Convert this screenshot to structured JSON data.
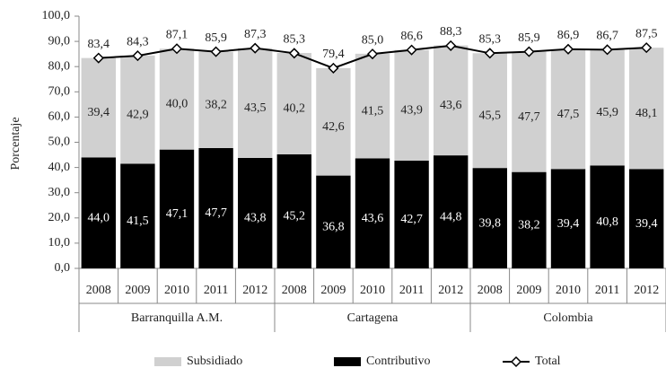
{
  "chart_data": {
    "type": "bar",
    "stacked": true,
    "grid": false,
    "y_label": "Porcentaje",
    "groups": [
      {
        "name": "Barranquilla A.M.",
        "categories": [
          "2008",
          "2009",
          "2010",
          "2011",
          "2012"
        ]
      },
      {
        "name": "Cartagena",
        "categories": [
          "2008",
          "2009",
          "2010",
          "2011",
          "2012"
        ]
      },
      {
        "name": "Colombia",
        "categories": [
          "2008",
          "2009",
          "2010",
          "2011",
          "2012"
        ]
      }
    ],
    "ylim": [
      0,
      100
    ],
    "yticks": [
      {
        "value": 0,
        "label": "0,0"
      },
      {
        "value": 10,
        "label": "10,0"
      },
      {
        "value": 20,
        "label": "20,0"
      },
      {
        "value": 30,
        "label": "30,0"
      },
      {
        "value": 40,
        "label": "40,0"
      },
      {
        "value": 50,
        "label": "50,0"
      },
      {
        "value": 60,
        "label": "60,0"
      },
      {
        "value": 70,
        "label": "70,0"
      },
      {
        "value": 80,
        "label": "80,0"
      },
      {
        "value": 90,
        "label": "90,0"
      },
      {
        "value": 100,
        "label": "100,0"
      }
    ],
    "series": [
      {
        "name": "Subsidiado",
        "type": "bar",
        "color": "#d0d0d0",
        "values": [
          39.4,
          42.9,
          40.0,
          38.2,
          43.5,
          40.2,
          42.6,
          41.5,
          43.9,
          43.6,
          45.5,
          47.7,
          47.5,
          45.9,
          48.1
        ],
        "value_labels": [
          "39,4",
          "42,9",
          "40,0",
          "38,2",
          "43,5",
          "40,2",
          "42,6",
          "41,5",
          "43,9",
          "43,6",
          "45,5",
          "47,7",
          "47,5",
          "45,9",
          "48,1"
        ]
      },
      {
        "name": "Contributivo",
        "type": "bar",
        "color": "#000000",
        "values": [
          44.0,
          41.5,
          47.1,
          47.7,
          43.8,
          45.2,
          36.8,
          43.6,
          42.7,
          44.8,
          39.8,
          38.2,
          39.4,
          40.8,
          39.4
        ],
        "value_labels": [
          "44,0",
          "41,5",
          "47,1",
          "47,7",
          "43,8",
          "45,2",
          "36,8",
          "43,6",
          "42,7",
          "44,8",
          "39,8",
          "38,2",
          "39,4",
          "40,8",
          "39,4"
        ]
      },
      {
        "name": "Total",
        "type": "line",
        "color": "#000000",
        "values": [
          83.4,
          84.3,
          87.1,
          85.9,
          87.3,
          85.3,
          79.4,
          85.0,
          86.6,
          88.3,
          85.3,
          85.9,
          86.9,
          86.7,
          87.5
        ],
        "value_labels": [
          "83,4",
          "84,3",
          "87,1",
          "85,9",
          "87,3",
          "85,3",
          "79,4",
          "85,0",
          "86,6",
          "88,3",
          "85,3",
          "85,9",
          "86,9",
          "86,7",
          "87,5"
        ]
      }
    ]
  }
}
